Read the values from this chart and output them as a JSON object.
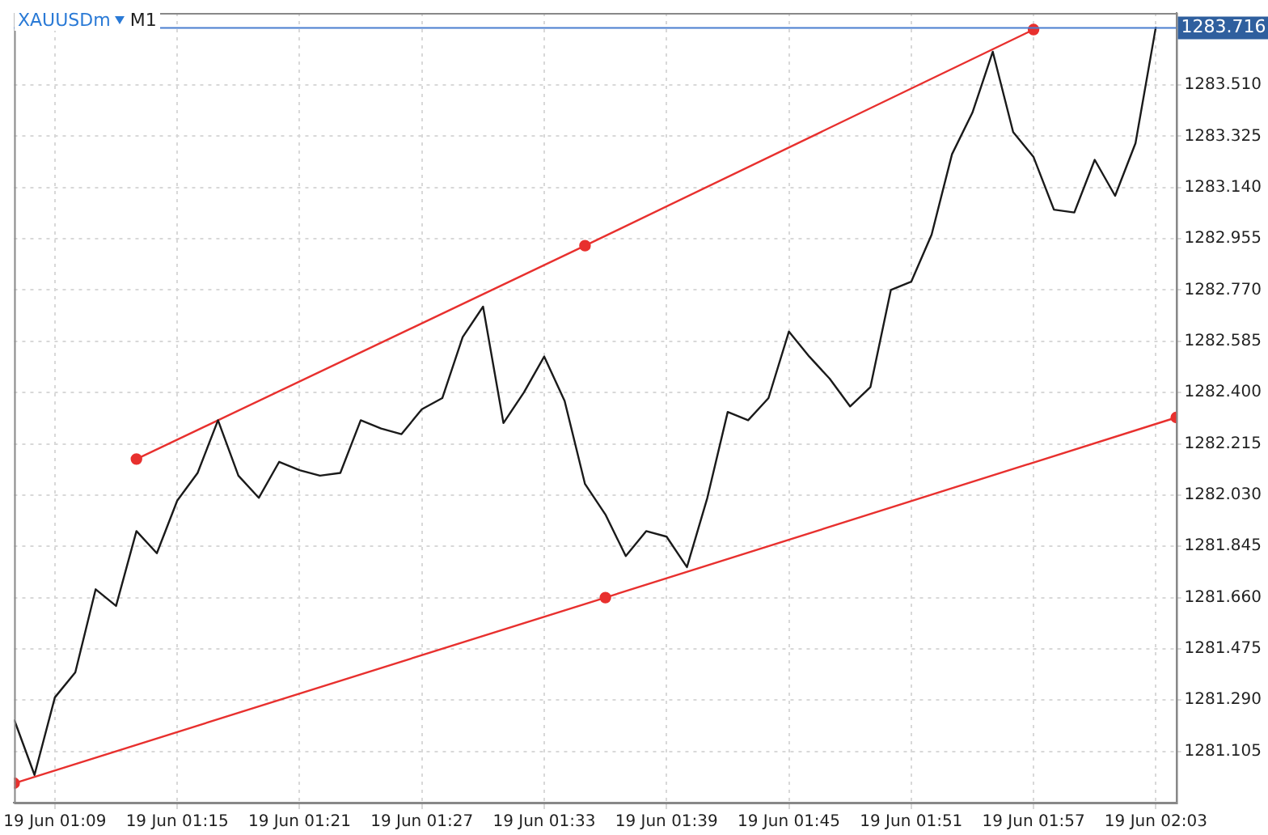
{
  "chart_data": {
    "type": "line",
    "title": "XAUUSDm",
    "subtitle": "M1",
    "x": [
      "--06-19T01:07",
      "--06-19T01:08",
      "--06-19T01:09",
      "--06-19T01:10",
      "--06-19T01:11",
      "--06-19T01:12",
      "--06-19T01:13",
      "--06-19T01:14",
      "--06-19T01:15",
      "--06-19T01:16",
      "--06-19T01:17",
      "--06-19T01:18",
      "--06-19T01:19",
      "--06-19T01:20",
      "--06-19T01:21",
      "--06-19T01:22",
      "--06-19T01:23",
      "--06-19T01:24",
      "--06-19T01:25",
      "--06-19T01:26",
      "--06-19T01:27",
      "--06-19T01:28",
      "--06-19T01:29",
      "--06-19T01:30",
      "--06-19T01:31",
      "--06-19T01:32",
      "--06-19T01:33",
      "--06-19T01:34",
      "--06-19T01:35",
      "--06-19T01:36",
      "--06-19T01:37",
      "--06-19T01:38",
      "--06-19T01:39",
      "--06-19T01:40",
      "--06-19T01:41",
      "--06-19T01:42",
      "--06-19T01:43",
      "--06-19T01:44",
      "--06-19T01:45",
      "--06-19T01:46",
      "--06-19T01:47",
      "--06-19T01:48",
      "--06-19T01:49",
      "--06-19T01:50",
      "--06-19T01:51",
      "--06-19T01:52",
      "--06-19T01:53",
      "--06-19T01:54",
      "--06-19T01:55",
      "--06-19T01:56",
      "--06-19T01:57",
      "--06-19T01:58",
      "--06-19T01:59",
      "--06-19T02:00",
      "--06-19T02:01",
      "--06-19T02:02",
      "--06-19T02:03"
    ],
    "series": [
      {
        "color": "#1a1a1a",
        "marker": "none",
        "values": [
          1281.22,
          1281.02,
          1281.3,
          1281.39,
          1281.69,
          1281.63,
          1281.9,
          1281.82,
          1282.01,
          1282.11,
          1282.3,
          1282.1,
          1282.02,
          1282.15,
          1282.12,
          1282.1,
          1282.11,
          1282.3,
          1282.27,
          1282.25,
          1282.34,
          1282.38,
          1282.6,
          1282.71,
          1282.29,
          1282.4,
          1282.53,
          1282.37,
          1282.07,
          1281.96,
          1281.81,
          1281.9,
          1281.88,
          1281.77,
          1282.02,
          1282.33,
          1282.3,
          1282.38,
          1282.62,
          1282.53,
          1282.45,
          1282.35,
          1282.42,
          1282.77,
          1282.8,
          1282.97,
          1283.26,
          1283.41,
          1283.63,
          1283.34,
          1283.25,
          1283.06,
          1283.05,
          1283.24,
          1283.11,
          1283.3,
          1283.72
        ]
      },
      {
        "type": "line",
        "color": "#e8302e",
        "marker": "circle",
        "x": [
          "--06-19T01:13",
          "--06-19T01:35",
          "--06-19T01:57"
        ],
        "values": [
          1282.16,
          1282.93,
          1283.71
        ]
      },
      {
        "type": "line",
        "color": "#e8302e",
        "marker": "circle",
        "x": [
          "--06-19T01:07",
          "--06-19T01:36",
          "--06-19T02:04"
        ],
        "values": [
          1280.99,
          1281.66,
          1282.31
        ]
      }
    ],
    "xlim": [
      "--06-19T01:07",
      "--06-19T02:04"
    ],
    "xticks": [
      {
        "value": "--06-19T01:09",
        "label": "19 Jun 01:09"
      },
      {
        "value": "--06-19T01:15",
        "label": "19 Jun 01:15"
      },
      {
        "value": "--06-19T01:21",
        "label": "19 Jun 01:21"
      },
      {
        "value": "--06-19T01:27",
        "label": "19 Jun 01:27"
      },
      {
        "value": "--06-19T01:33",
        "label": "19 Jun 01:33"
      },
      {
        "value": "--06-19T01:39",
        "label": "19 Jun 01:39"
      },
      {
        "value": "--06-19T01:45",
        "label": "19 Jun 01:45"
      },
      {
        "value": "--06-19T01:51",
        "label": "19 Jun 01:51"
      },
      {
        "value": "--06-19T01:57",
        "label": "19 Jun 01:57"
      },
      {
        "value": "--06-19T02:03",
        "label": "19 Jun 02:03"
      }
    ],
    "ylim": [
      1280.92,
      1283.77
    ],
    "yticks": [
      1281.105,
      {
        "value": 1281.29,
        "label": "1281.290"
      },
      1281.475,
      {
        "value": 1281.66,
        "label": "1281.660"
      },
      1281.845,
      {
        "value": 1282.03,
        "label": "1282.030"
      },
      1282.215,
      {
        "value": 1282.4,
        "label": "1282.400"
      },
      1282.585,
      {
        "value": 1282.77,
        "label": "1282.770"
      },
      1282.955,
      {
        "value": 1283.14,
        "label": "1283.140"
      },
      1283.325,
      {
        "value": 1283.51,
        "label": "1283.510"
      }
    ],
    "ref_lines": [
      {
        "axis": "y",
        "value": 1283.716,
        "label": "1283.716",
        "color": "#4a7fd0"
      }
    ],
    "grid": true,
    "legend": false
  }
}
